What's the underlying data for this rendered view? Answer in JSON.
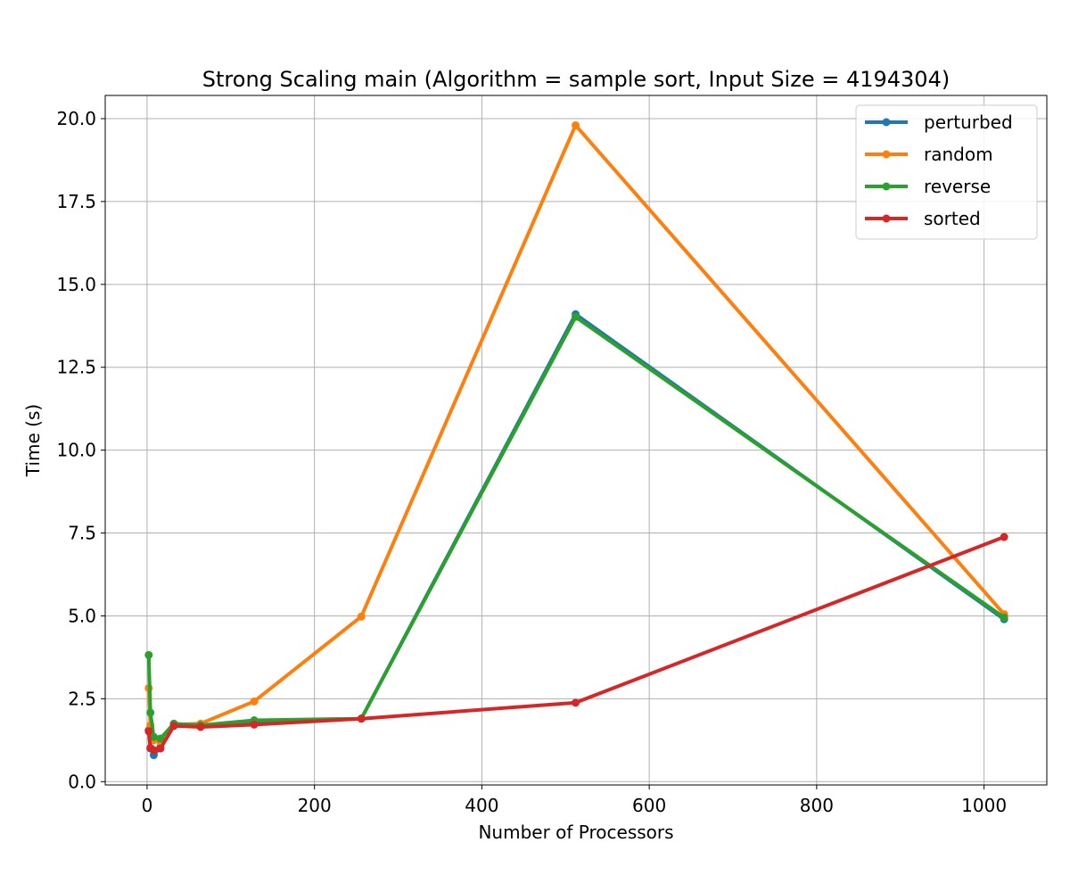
{
  "chart_data": {
    "type": "line",
    "title": "Strong Scaling main (Algorithm = sample sort, Input Size = 4194304)",
    "xlabel": "Number of Processors",
    "ylabel": "Time (s)",
    "xlim": [
      -50,
      1075
    ],
    "ylim": [
      -0.1,
      20.7
    ],
    "xticks": [
      0,
      200,
      400,
      600,
      800,
      1000
    ],
    "xtick_labels": [
      "0",
      "200",
      "400",
      "600",
      "800",
      "1000"
    ],
    "yticks": [
      0.0,
      2.5,
      5.0,
      7.5,
      10.0,
      12.5,
      15.0,
      17.5,
      20.0
    ],
    "ytick_labels": [
      "0.0",
      "2.5",
      "5.0",
      "7.5",
      "10.0",
      "12.5",
      "15.0",
      "17.5",
      "20.0"
    ],
    "grid": true,
    "legend_position": "top-right",
    "x": [
      2,
      4,
      8,
      16,
      32,
      64,
      128,
      256,
      512,
      1024
    ],
    "series": [
      {
        "name": "perturbed",
        "color": "#1f77b4",
        "values": [
          1.55,
          1.0,
          0.8,
          1.05,
          1.7,
          1.7,
          1.75,
          1.9,
          14.1,
          4.9
        ]
      },
      {
        "name": "random",
        "color": "#ff7f0e",
        "values": [
          2.82,
          1.7,
          1.25,
          1.2,
          1.72,
          1.75,
          2.42,
          4.98,
          19.8,
          5.05
        ]
      },
      {
        "name": "reverse",
        "color": "#2ca02c",
        "values": [
          3.82,
          2.08,
          1.35,
          1.3,
          1.75,
          1.7,
          1.85,
          1.9,
          14.02,
          4.95
        ]
      },
      {
        "name": "sorted",
        "color": "#d62728",
        "values": [
          1.52,
          1.02,
          0.95,
          1.0,
          1.68,
          1.65,
          1.72,
          1.9,
          2.38,
          7.38
        ]
      }
    ]
  }
}
